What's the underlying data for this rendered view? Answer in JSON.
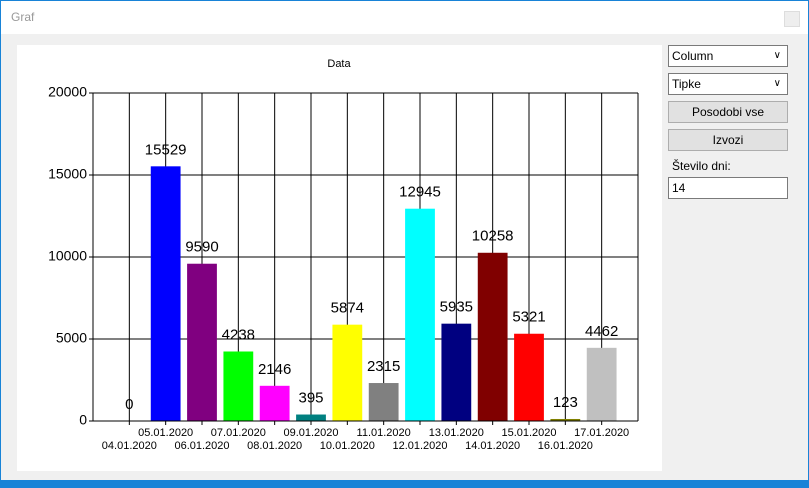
{
  "window": {
    "title": "Graf"
  },
  "chart_data": {
    "type": "bar",
    "title": "Data",
    "categories": [
      "04.01.2020",
      "05.01.2020",
      "06.01.2020",
      "07.01.2020",
      "08.01.2020",
      "09.01.2020",
      "10.01.2020",
      "11.01.2020",
      "12.01.2020",
      "13.01.2020",
      "14.01.2020",
      "15.01.2020",
      "16.01.2020",
      "17.01.2020"
    ],
    "values": [
      0,
      15529,
      9590,
      4238,
      2146,
      395,
      5874,
      2315,
      12945,
      5935,
      10258,
      5321,
      123,
      4462
    ],
    "colors": [
      "#000000",
      "#0000ff",
      "#800080",
      "#00ff00",
      "#ff00ff",
      "#008080",
      "#ffff00",
      "#808080",
      "#00ffff",
      "#000080",
      "#800000",
      "#ff0000",
      "#808000",
      "#c0c0c0"
    ],
    "ylim": [
      0,
      20000
    ],
    "yticks": [
      0,
      5000,
      10000,
      15000,
      20000
    ],
    "grid": true
  },
  "controls": {
    "chart_type": "Column",
    "palette": "Tipke",
    "update_button": "Posodobi vse",
    "export_button": "Izvozi",
    "days_label": "Število dni:",
    "days_value": "14"
  }
}
